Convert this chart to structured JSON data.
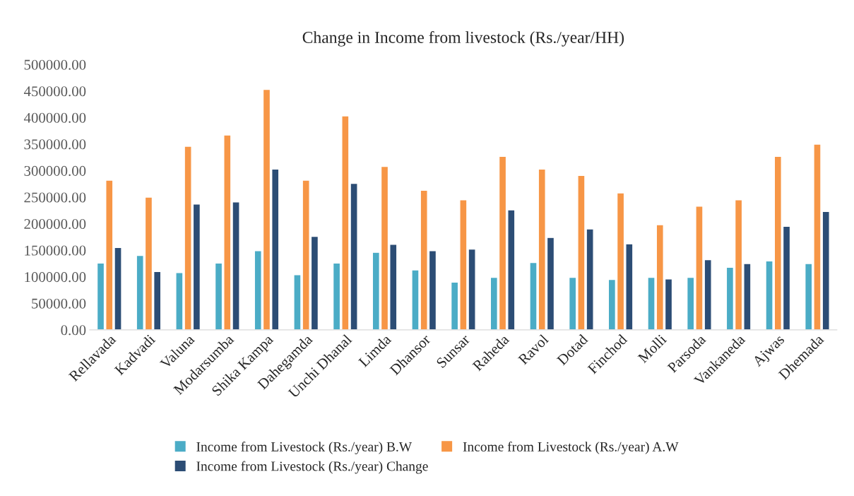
{
  "chart_data": {
    "type": "bar",
    "title": "Change in Income from livestock (Rs./year/HH)",
    "categories": [
      "Rellavada",
      "Kadvadi",
      "Valuna",
      "Modarsumba",
      "Shika Kampa",
      "Dahegamda",
      "Unchi Dhanal",
      "Limda",
      "Dhansor",
      "Sunsar",
      "Raheda",
      "Ravol",
      "Dotad",
      "Finchod",
      "Molli",
      "Parsoda",
      "Vankaneda",
      "Ajwas",
      "Dhemada"
    ],
    "series": [
      {
        "name": "Income from Livestock (Rs./year) B.W",
        "color": "#4bacc6",
        "values": [
          126000,
          140000,
          108000,
          126000,
          149000,
          104000,
          126000,
          146000,
          113000,
          90000,
          99000,
          127000,
          99000,
          95000,
          99000,
          99000,
          118000,
          130000,
          125000
        ]
      },
      {
        "name": "Income from Livestock (Rs./year) A.W",
        "color": "#f79646",
        "values": [
          282000,
          250000,
          346000,
          367000,
          453000,
          282000,
          403000,
          308000,
          263000,
          245000,
          327000,
          303000,
          291000,
          258000,
          198000,
          233000,
          245000,
          327000,
          350000
        ]
      },
      {
        "name": "Income from Livestock (Rs./year) Change",
        "color": "#2c4d75",
        "values": [
          155000,
          110000,
          237000,
          241000,
          303000,
          176000,
          276000,
          161000,
          149000,
          152000,
          226000,
          174000,
          190000,
          162000,
          96000,
          132000,
          125000,
          195000,
          223000
        ]
      }
    ],
    "ylim": [
      0,
      500000
    ],
    "yticks": [
      {
        "value": 0,
        "label": "0.00"
      },
      {
        "value": 50000,
        "label": "50000.00"
      },
      {
        "value": 100000,
        "label": "100000.00"
      },
      {
        "value": 150000,
        "label": "150000.00"
      },
      {
        "value": 200000,
        "label": "200000.00"
      },
      {
        "value": 250000,
        "label": "250000.00"
      },
      {
        "value": 300000,
        "label": "300000.00"
      },
      {
        "value": 350000,
        "label": "350000.00"
      },
      {
        "value": 400000,
        "label": "400000.00"
      },
      {
        "value": 450000,
        "label": "450000.00"
      },
      {
        "value": 500000,
        "label": "500000.00"
      }
    ],
    "grid": false,
    "legend": "bottom"
  }
}
